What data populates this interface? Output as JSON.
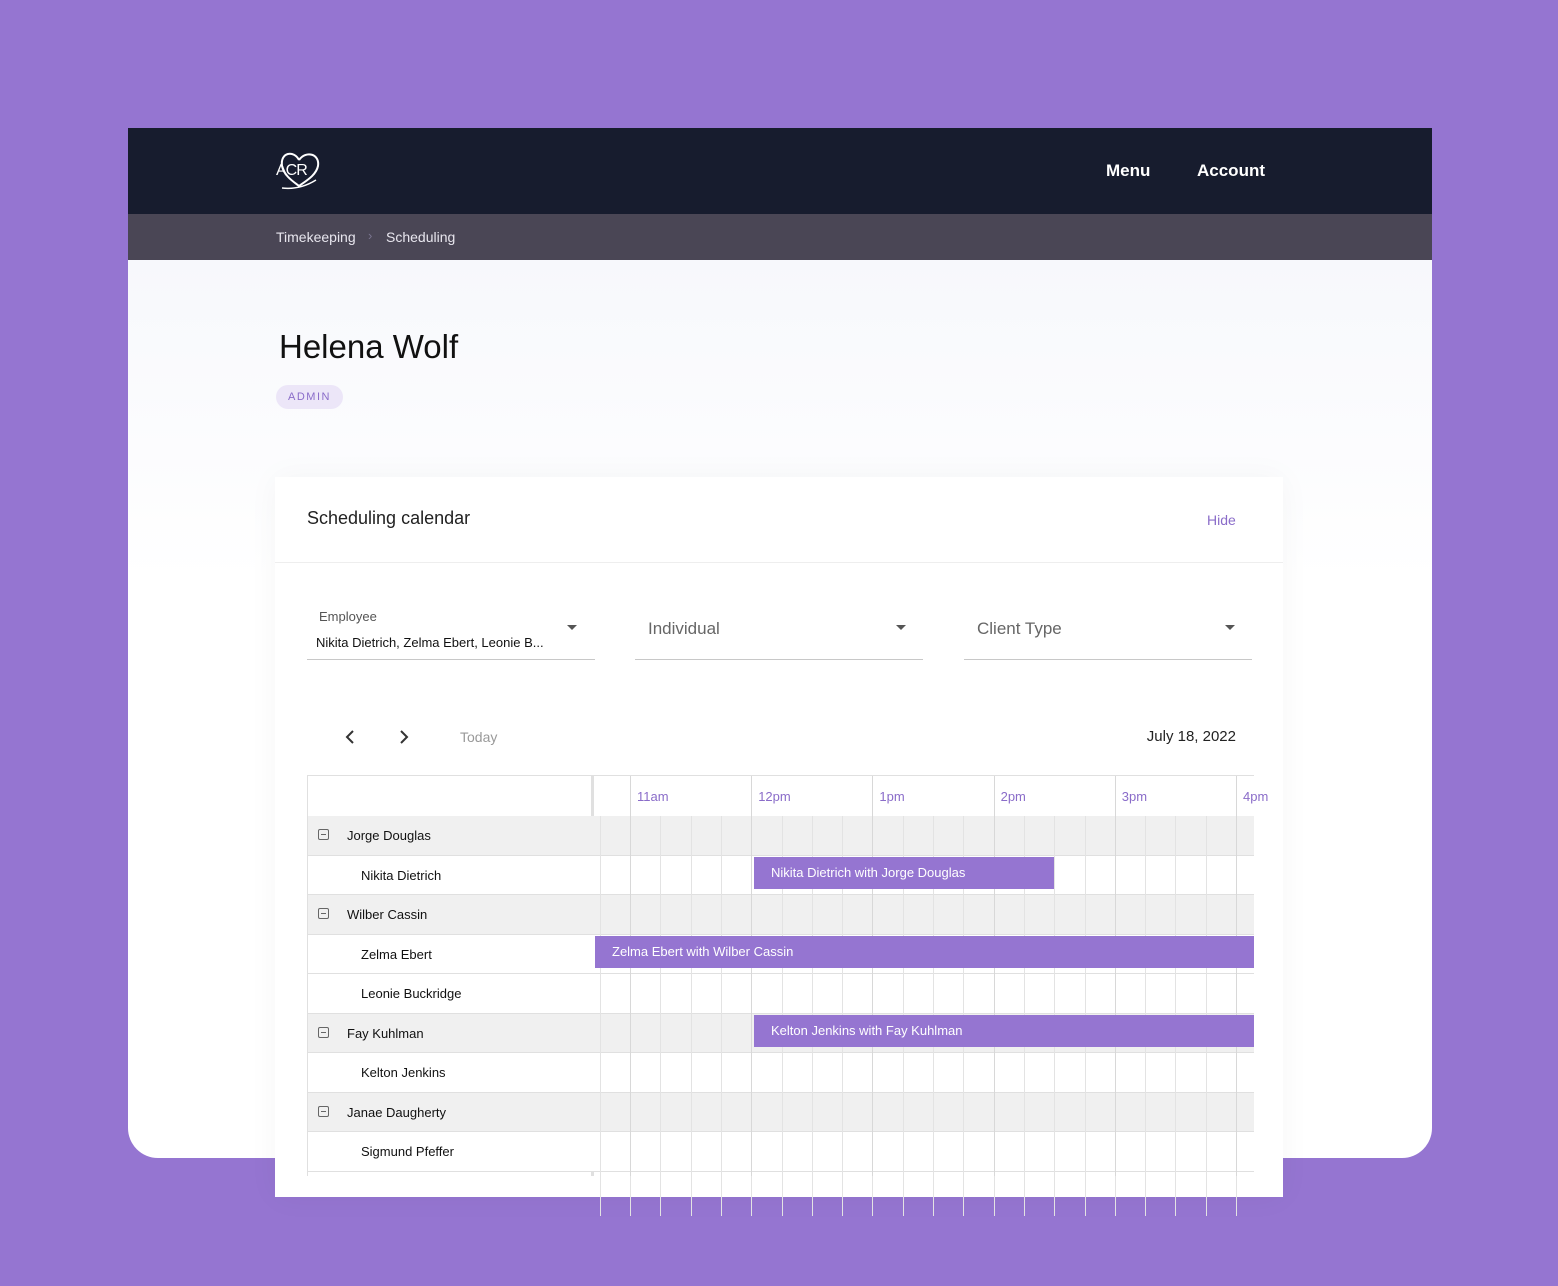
{
  "navbar": {
    "logo": "ACR",
    "links": [
      "Menu",
      "Account"
    ]
  },
  "breadcrumb": [
    "Timekeeping",
    "Scheduling"
  ],
  "profile": {
    "name": "Helena Wolf",
    "role": "ADMIN"
  },
  "panel": {
    "title": "Scheduling calendar",
    "action": "Hide",
    "filters": [
      {
        "label": "Employee",
        "value": "Nikita Dietrich, Zelma Ebert, Leonie B..."
      },
      {
        "placeholder": "Individual"
      },
      {
        "placeholder": "Client Type"
      }
    ],
    "toolbar": {
      "today": "Today",
      "date": "July 18, 2022"
    },
    "calendar": {
      "hours": [
        "11am",
        "12pm",
        "1pm",
        "2pm",
        "3pm",
        "4pm"
      ],
      "rows": [
        {
          "name": "Jorge Douglas",
          "group": true
        },
        {
          "name": "Nikita Dietrich",
          "group": false,
          "event": "Nikita Dietrich with Jorge Douglas"
        },
        {
          "name": "Wilber Cassin",
          "group": true
        },
        {
          "name": "Zelma Ebert",
          "group": false,
          "event": "Zelma Ebert with Wilber Cassin"
        },
        {
          "name": "Leonie Buckridge",
          "group": false
        },
        {
          "name": "Fay Kuhlman",
          "group": true,
          "event": "Kelton Jenkins with Fay Kuhlman"
        },
        {
          "name": "Kelton Jenkins",
          "group": false
        },
        {
          "name": "Janae Daugherty",
          "group": true
        },
        {
          "name": "Sigmund Pfeffer",
          "group": false
        }
      ]
    }
  }
}
